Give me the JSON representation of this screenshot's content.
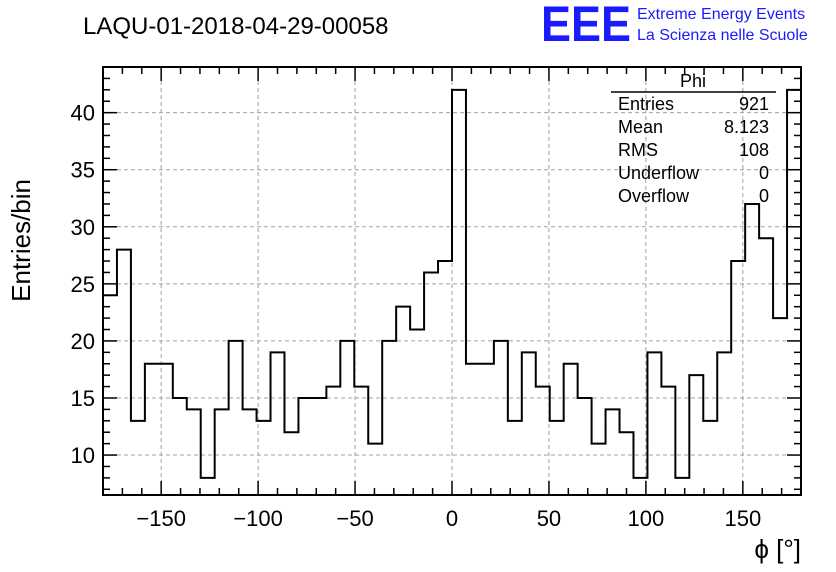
{
  "chart_data": {
    "type": "bar",
    "title": "LAQU-01-2018-04-29-00058",
    "xlabel": "ϕ [°]",
    "ylabel": "Entries/bin",
    "xlim": [
      -180,
      180
    ],
    "ylim": [
      6.5,
      44
    ],
    "x_ticks": [
      -150,
      -100,
      -50,
      0,
      50,
      100,
      150
    ],
    "x_tick_labels": [
      "−150",
      "−100",
      "−50",
      "0",
      "50",
      "100",
      "150"
    ],
    "y_ticks": [
      10,
      15,
      20,
      25,
      30,
      35,
      40
    ],
    "y_tick_labels": [
      "10",
      "15",
      "20",
      "25",
      "30",
      "35",
      "40"
    ],
    "grid": true,
    "bin_edges_start": -180,
    "bin_width": 7.2,
    "values": [
      24,
      28,
      13,
      18,
      18,
      15,
      14,
      8,
      14,
      20,
      14,
      13,
      19,
      12,
      15,
      15,
      16,
      20,
      16,
      11,
      20,
      23,
      21,
      26,
      27,
      42,
      18,
      18,
      20,
      13,
      19,
      16,
      13,
      18,
      15,
      11,
      14,
      12,
      8,
      19,
      16,
      8,
      17,
      13,
      19,
      27,
      32,
      29,
      22,
      42
    ],
    "stats": {
      "name": "Phi",
      "rows": [
        {
          "label": "Entries",
          "value": "921"
        },
        {
          "label": "Mean",
          "value": "8.123"
        },
        {
          "label": "RMS",
          "value": "108"
        },
        {
          "label": "Underflow",
          "value": "0"
        },
        {
          "label": "Overflow",
          "value": "0"
        }
      ]
    }
  },
  "logo": {
    "mark": "EEE",
    "line1": "Extreme Energy Events",
    "line2": "La Scienza nelle Scuole"
  },
  "colors": {
    "logo": "#1a1aff",
    "grid": "#a0a0a0",
    "line": "#000000"
  }
}
